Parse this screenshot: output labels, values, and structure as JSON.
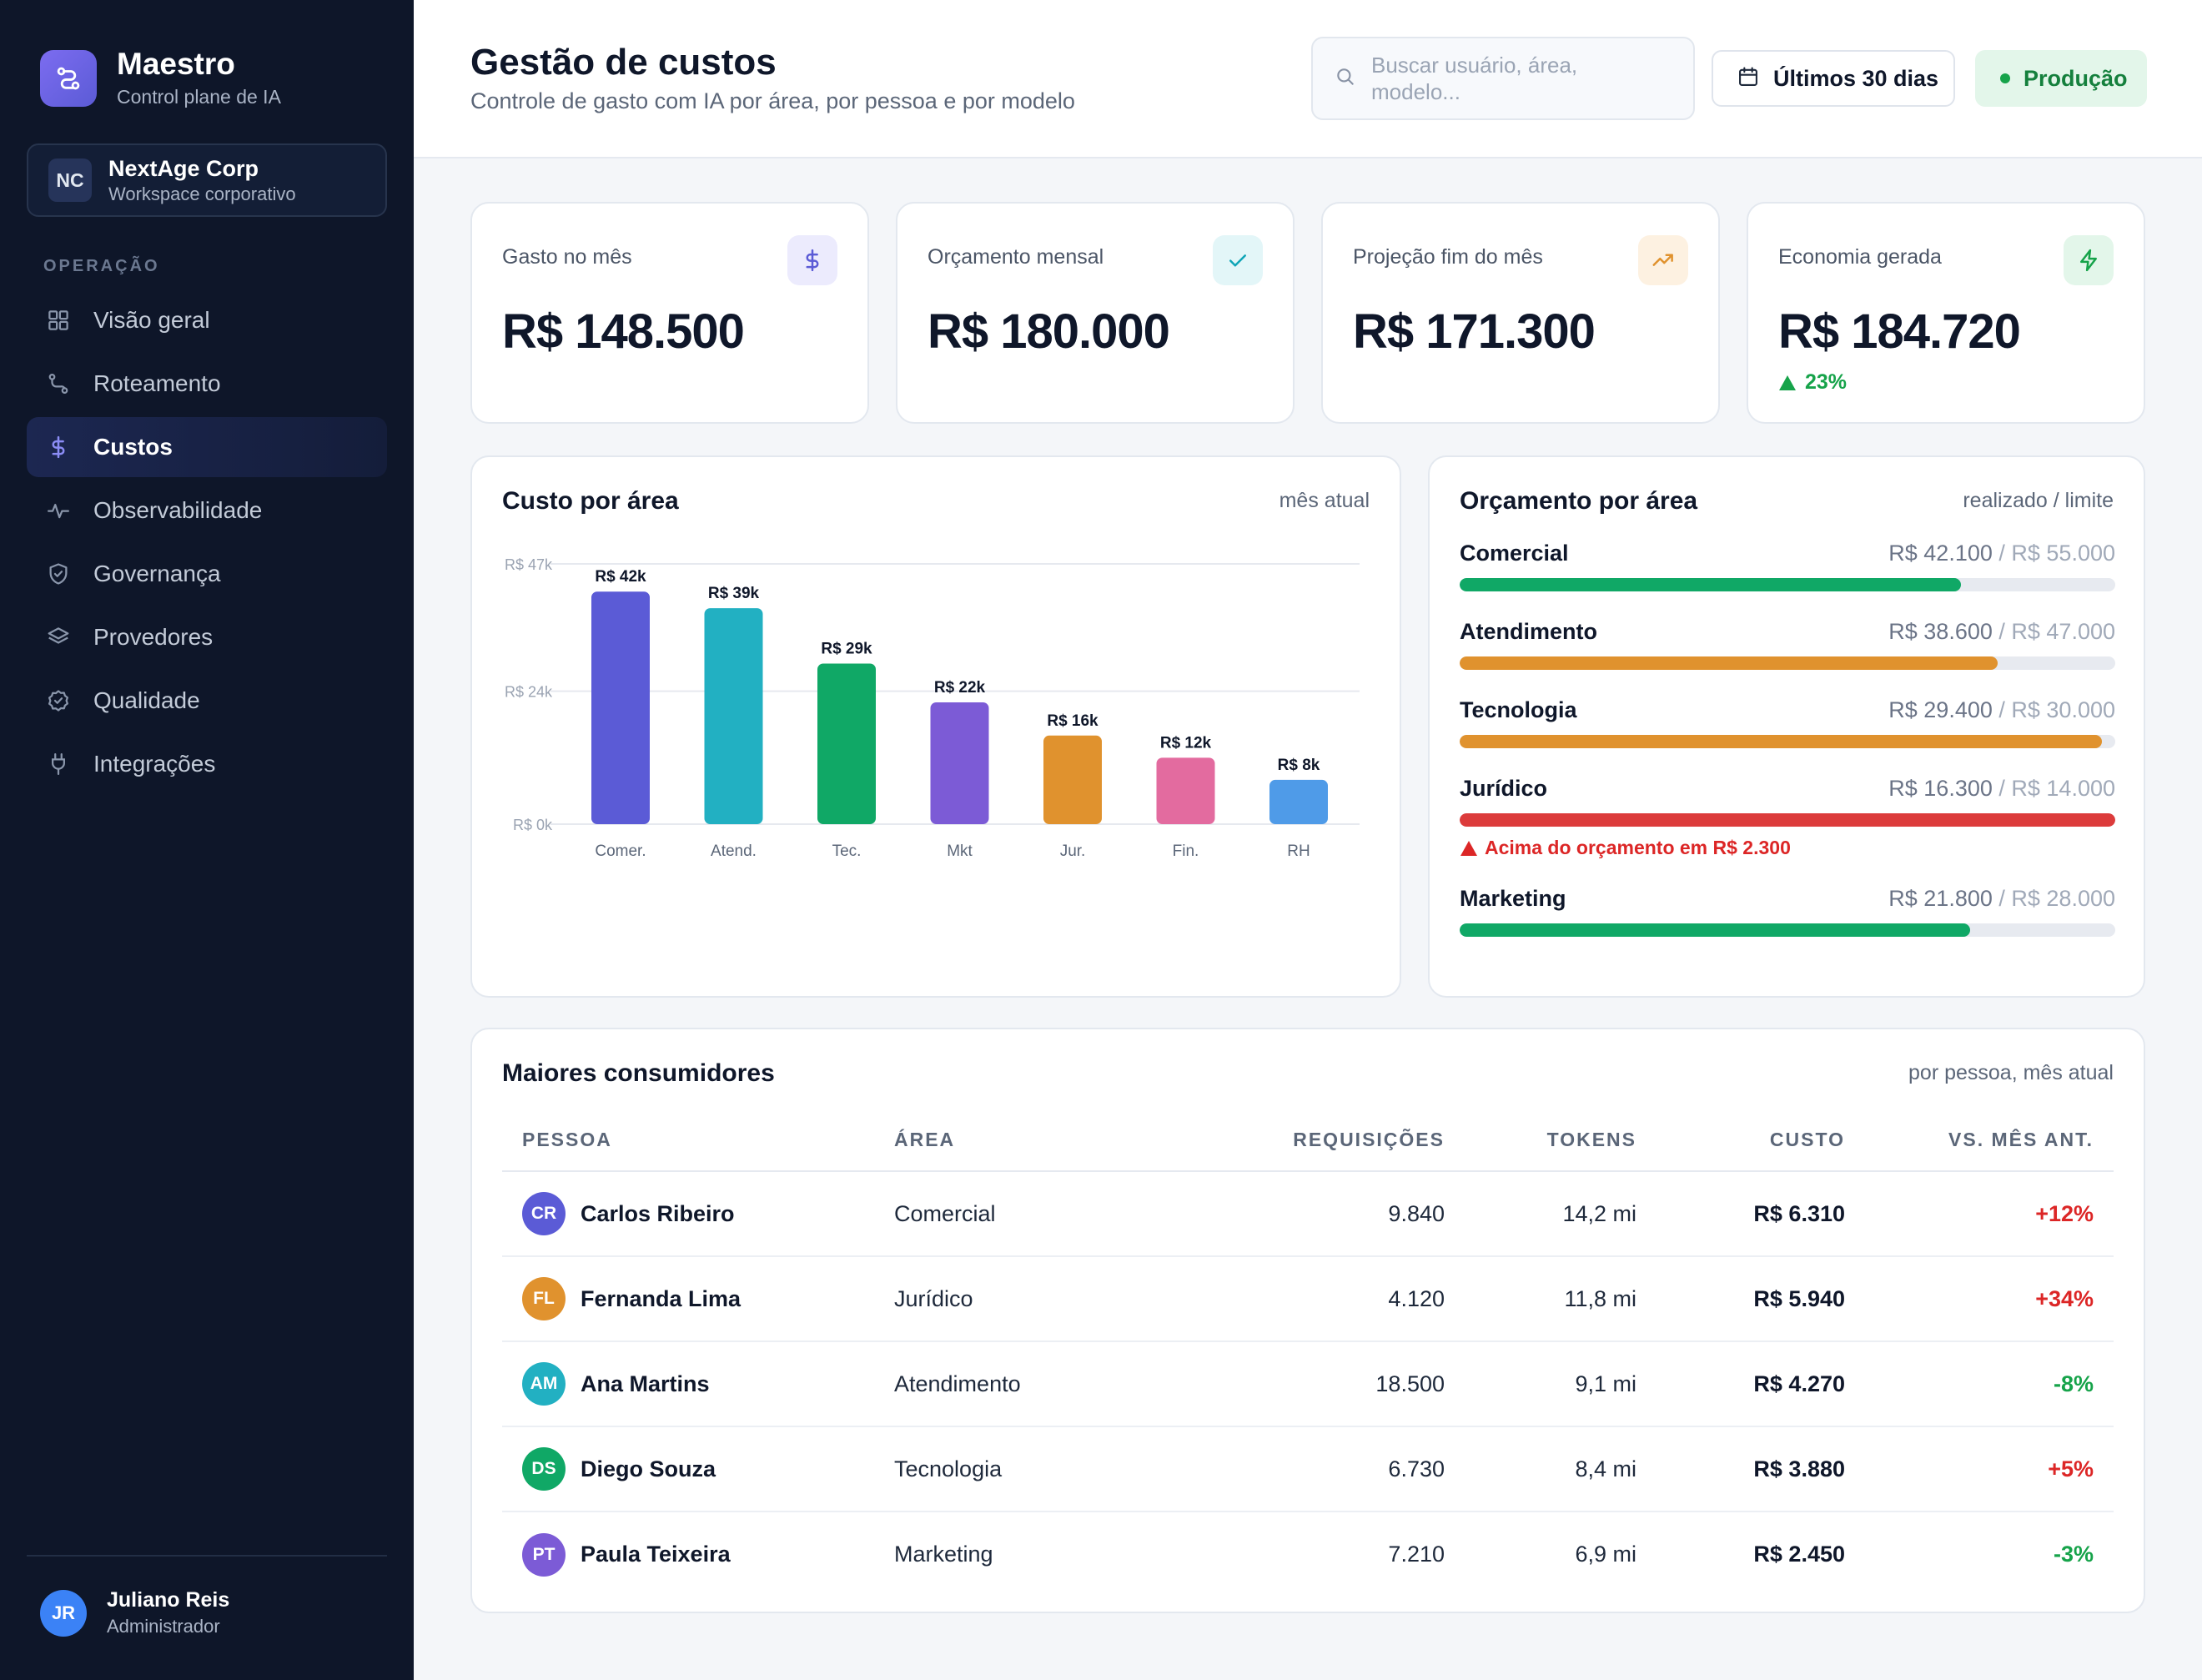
{
  "brand": {
    "name": "Maestro",
    "subtitle": "Control plane de IA"
  },
  "workspace": {
    "initials": "NC",
    "name": "NextAge Corp",
    "subtitle": "Workspace corporativo"
  },
  "nav": {
    "section": "OPERAÇÃO",
    "items": [
      {
        "label": "Visão geral",
        "icon": "grid-icon",
        "active": false
      },
      {
        "label": "Roteamento",
        "icon": "route-icon",
        "active": false
      },
      {
        "label": "Custos",
        "icon": "dollar-icon",
        "active": true
      },
      {
        "label": "Observabilidade",
        "icon": "activity-icon",
        "active": false
      },
      {
        "label": "Governança",
        "icon": "shield-icon",
        "active": false
      },
      {
        "label": "Provedores",
        "icon": "layers-icon",
        "active": false
      },
      {
        "label": "Qualidade",
        "icon": "badge-check-icon",
        "active": false
      },
      {
        "label": "Integrações",
        "icon": "plug-icon",
        "active": false
      }
    ]
  },
  "user": {
    "initials": "JR",
    "name": "Juliano Reis",
    "role": "Administrador"
  },
  "header": {
    "title": "Gestão de custos",
    "subtitle": "Controle de gasto com IA por área, por pessoa e por modelo",
    "search_placeholder": "Buscar usuário, área, modelo...",
    "date_range": "Últimos 30 dias",
    "environment": "Produção"
  },
  "kpis": [
    {
      "label": "Gasto no mês",
      "value": "R$ 148.500",
      "icon": "dollar-icon",
      "color": "#5b5bd6",
      "bg": "#ecebfd"
    },
    {
      "label": "Orçamento mensal",
      "value": "R$ 180.000",
      "icon": "check-icon",
      "color": "#0ea5b7",
      "bg": "#e3f6f8"
    },
    {
      "label": "Projeção fim do mês",
      "value": "R$ 171.300",
      "icon": "trend-up-icon",
      "color": "#e0922e",
      "bg": "#fdf1e1"
    },
    {
      "label": "Economia gerada",
      "value": "R$ 184.720",
      "icon": "bolt-icon",
      "color": "#16a34a",
      "bg": "#e3f6ea",
      "trend": "23%"
    }
  ],
  "area_chart": {
    "title": "Custo por área",
    "aside": "mês atual"
  },
  "chart_data": {
    "type": "bar",
    "title": "Custo por área",
    "categories": [
      "Comer.",
      "Atend.",
      "Tec.",
      "Mkt",
      "Jur.",
      "Fin.",
      "RH"
    ],
    "values": [
      42,
      39,
      29,
      22,
      16,
      12,
      8
    ],
    "value_labels": [
      "R$ 42k",
      "R$ 39k",
      "R$ 29k",
      "R$ 22k",
      "R$ 16k",
      "R$ 12k",
      "R$ 8k"
    ],
    "colors": [
      "#5b5bd6",
      "#22b0c2",
      "#10a866",
      "#7c5bd6",
      "#e0922e",
      "#e36b9f",
      "#4f9be8"
    ],
    "y_ticks": [
      0,
      24,
      47
    ],
    "y_tick_labels": [
      "R$ 0k",
      "R$ 24k",
      "R$ 47k"
    ],
    "ylim": [
      0,
      47
    ],
    "grid": true
  },
  "budget": {
    "title": "Orçamento por área",
    "aside": "realizado / limite",
    "items": [
      {
        "name": "Comercial",
        "used": "R$ 42.100",
        "limit": "R$ 55.000",
        "ratio": 0.765,
        "color": "#10a866"
      },
      {
        "name": "Atendimento",
        "used": "R$ 38.600",
        "limit": "R$ 47.000",
        "ratio": 0.821,
        "color": "#e0922e"
      },
      {
        "name": "Tecnologia",
        "used": "R$ 29.400",
        "limit": "R$ 30.000",
        "ratio": 0.98,
        "color": "#e0922e"
      },
      {
        "name": "Jurídico",
        "used": "R$ 16.300",
        "limit": "R$ 14.000",
        "ratio": 1.0,
        "color": "#dc3b3b",
        "alert": "Acima do orçamento em R$ 2.300"
      },
      {
        "name": "Marketing",
        "used": "R$ 21.800",
        "limit": "R$ 28.000",
        "ratio": 0.779,
        "color": "#10a866"
      }
    ]
  },
  "consumers": {
    "title": "Maiores consumidores",
    "aside": "por pessoa, mês atual",
    "columns": [
      "PESSOA",
      "ÁREA",
      "REQUISIÇÕES",
      "TOKENS",
      "CUSTO",
      "VS. MÊS ANT."
    ],
    "rows": [
      {
        "initials": "CR",
        "color": "#5b5bd6",
        "name": "Carlos Ribeiro",
        "area": "Comercial",
        "requests": "9.840",
        "tokens": "14,2 mi",
        "cost": "R$ 6.310",
        "delta": "+12%",
        "trend": "up"
      },
      {
        "initials": "FL",
        "color": "#e0922e",
        "name": "Fernanda Lima",
        "area": "Jurídico",
        "requests": "4.120",
        "tokens": "11,8 mi",
        "cost": "R$ 5.940",
        "delta": "+34%",
        "trend": "up"
      },
      {
        "initials": "AM",
        "color": "#22b0c2",
        "name": "Ana Martins",
        "area": "Atendimento",
        "requests": "18.500",
        "tokens": "9,1 mi",
        "cost": "R$ 4.270",
        "delta": "-8%",
        "trend": "down"
      },
      {
        "initials": "DS",
        "color": "#10a866",
        "name": "Diego Souza",
        "area": "Tecnologia",
        "requests": "6.730",
        "tokens": "8,4 mi",
        "cost": "R$ 3.880",
        "delta": "+5%",
        "trend": "up"
      },
      {
        "initials": "PT",
        "color": "#7c5bd6",
        "name": "Paula Teixeira",
        "area": "Marketing",
        "requests": "7.210",
        "tokens": "6,9 mi",
        "cost": "R$ 2.450",
        "delta": "-3%",
        "trend": "down"
      }
    ]
  }
}
